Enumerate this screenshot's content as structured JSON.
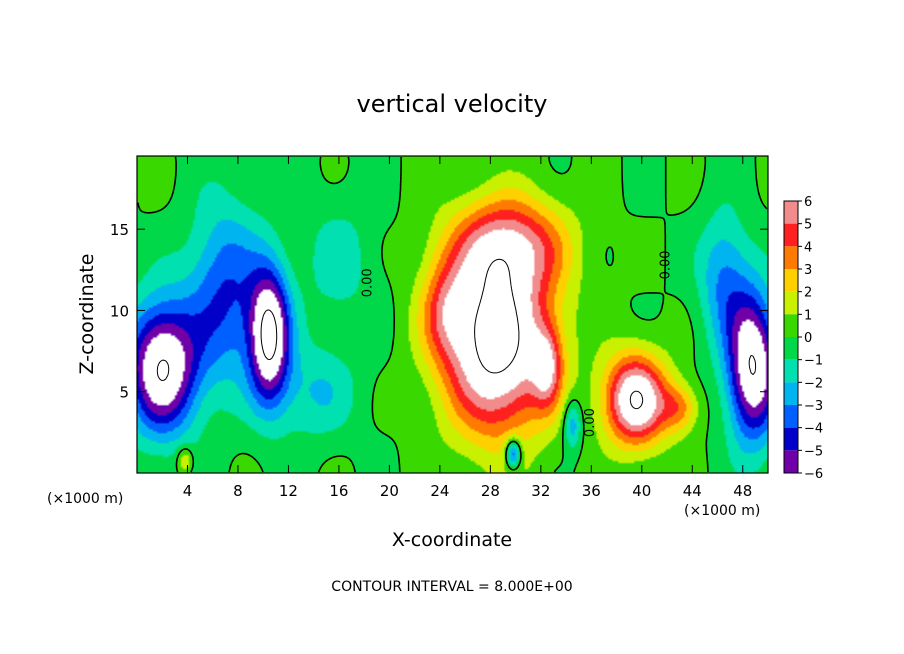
{
  "chart_data": {
    "type": "heatmap",
    "title": "vertical velocity",
    "xlabel": "X-coordinate",
    "ylabel": "Z-coordinate",
    "x_unit_left": "(×1000 m)",
    "x_unit_right": "(×1000 m)",
    "xlim": [
      0,
      50
    ],
    "ylim": [
      0,
      19.5
    ],
    "x_ticks": [
      4,
      8,
      12,
      16,
      20,
      24,
      28,
      32,
      36,
      40,
      44,
      48
    ],
    "y_ticks": [
      5,
      10,
      15
    ],
    "colorbar": {
      "levels": [
        6,
        5,
        4,
        3,
        2,
        1,
        0,
        -1,
        -2,
        -3,
        -4,
        -5,
        -6
      ],
      "colors": [
        "#f28c8c",
        "#ff2020",
        "#ff7a00",
        "#ffd000",
        "#c8f000",
        "#38d800",
        "#00d84a",
        "#00e0b0",
        "#00b4f0",
        "#0060ff",
        "#0000c8",
        "#7000a8"
      ]
    },
    "contour_labels": [
      {
        "text": "0.00",
        "x": 18.6,
        "y": 11.7
      },
      {
        "text": "0.00",
        "x": 42.2,
        "y": 12.8
      },
      {
        "text": "0.00",
        "x": 36.2,
        "y": 3.1
      }
    ],
    "footer": "CONTOUR INTERVAL = 8.000E+00",
    "features": [
      {
        "kind": "updraft",
        "x": 28.5,
        "z": 8.0,
        "sx": 4.2,
        "sz": 5.5,
        "w": 9
      },
      {
        "kind": "updraft",
        "x": 29.5,
        "z": 14.0,
        "sx": 4.5,
        "sz": 3.0,
        "w": 5
      },
      {
        "kind": "updraft",
        "x": 39.5,
        "z": 4.5,
        "sx": 2.5,
        "sz": 2.8,
        "w": 8
      },
      {
        "kind": "updraft",
        "x": 32.5,
        "z": 6.5,
        "sx": 1.2,
        "sz": 2.5,
        "w": 4
      },
      {
        "kind": "updraft",
        "x": 24.5,
        "z": 10.0,
        "sx": 2.0,
        "sz": 3.0,
        "w": 3
      },
      {
        "kind": "updraft",
        "x": 43.0,
        "z": 4.0,
        "sx": 1.5,
        "sz": 1.5,
        "w": 3
      },
      {
        "kind": "updraft",
        "x": 3.8,
        "z": 0.8,
        "sx": 0.6,
        "sz": 0.8,
        "w": 2.5
      },
      {
        "kind": "downdraft",
        "x": 2.0,
        "z": 6.5,
        "sx": 2.8,
        "sz": 4.0,
        "w": -8
      },
      {
        "kind": "downdraft",
        "x": 10.5,
        "z": 8.5,
        "sx": 1.6,
        "sz": 4.0,
        "w": -8
      },
      {
        "kind": "downdraft",
        "x": 7.0,
        "z": 11.0,
        "sx": 3.0,
        "sz": 5.5,
        "w": -4
      },
      {
        "kind": "downdraft",
        "x": 48.8,
        "z": 6.5,
        "sx": 2.0,
        "sz": 4.5,
        "w": -8
      },
      {
        "kind": "downdraft",
        "x": 46.5,
        "z": 12.0,
        "sx": 2.0,
        "sz": 4.0,
        "w": -3
      },
      {
        "kind": "downdraft",
        "x": 29.8,
        "z": 1.2,
        "sx": 0.6,
        "sz": 0.9,
        "w": -5
      },
      {
        "kind": "downdraft",
        "x": 34.5,
        "z": 3.0,
        "sx": 0.7,
        "sz": 1.5,
        "w": -3
      },
      {
        "kind": "downdraft",
        "x": 14.0,
        "z": 5.0,
        "sx": 3.5,
        "sz": 3.0,
        "w": -2
      },
      {
        "kind": "downdraft",
        "x": 16.0,
        "z": 13.0,
        "sx": 3.0,
        "sz": 4.0,
        "w": -1.5
      }
    ]
  }
}
